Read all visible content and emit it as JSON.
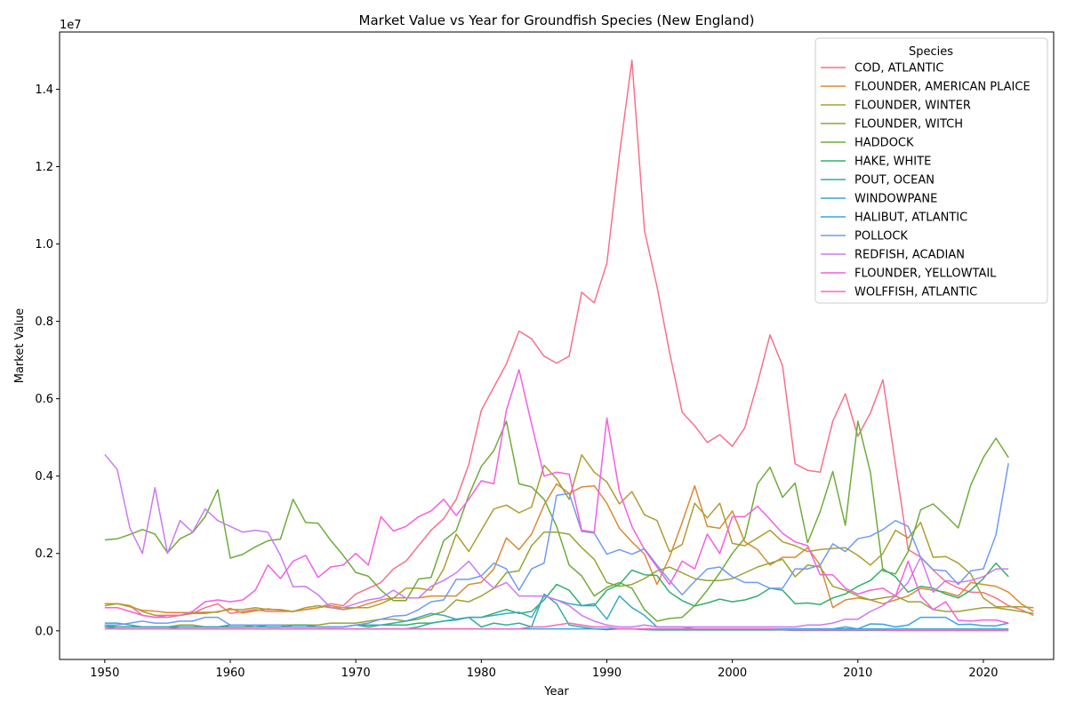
{
  "chart_data": {
    "type": "line",
    "title": "Market Value vs Year for Groundfish Species (New England)",
    "xlabel": "Year",
    "ylabel": "Market Value",
    "offset_text": "1e7",
    "xlim": [
      1946.4,
      2025.6
    ],
    "ylim": [
      -740000,
      15480000
    ],
    "xticks": [
      1950,
      1960,
      1970,
      1980,
      1990,
      2000,
      2010,
      2020
    ],
    "xtick_labels": [
      "1950",
      "1960",
      "1970",
      "1980",
      "1990",
      "2000",
      "2010",
      "2020"
    ],
    "yticks": [
      0,
      2000000,
      4000000,
      6000000,
      8000000,
      10000000,
      12000000,
      14000000
    ],
    "ytick_labels": [
      "0.0",
      "0.2",
      "0.4",
      "0.6",
      "0.8",
      "1.0",
      "1.2",
      "1.4"
    ],
    "grid": false,
    "legend": {
      "title": "Species",
      "placement": "top-right"
    },
    "x_start": 1950,
    "series": [
      {
        "name": "COD, ATLANTIC",
        "color": "#f77189",
        "values": [
          700000,
          700000,
          650000,
          400000,
          350000,
          350000,
          400000,
          450000,
          600000,
          700000,
          450000,
          500000,
          550000,
          500000,
          500000,
          500000,
          550000,
          600000,
          700000,
          650000,
          950000,
          1100000,
          1250000,
          1600000,
          1800000,
          2200000,
          2600000,
          2900000,
          3400000,
          4300000,
          5700000,
          6300000,
          6900000,
          7750000,
          7550000,
          7100000,
          6920000,
          7100000,
          8750000,
          8480000,
          9500000,
          12300000,
          14750000,
          10350000,
          8900000,
          7200000,
          5650000,
          5300000,
          4870000,
          5070000,
          4770000,
          5250000,
          6400000,
          7650000,
          6850000,
          4320000,
          4150000,
          4100000,
          5420000,
          6130000,
          5030000,
          5630000,
          6490000,
          4300000,
          2100000,
          1910000,
          1570000,
          1270000,
          1110000,
          1000000,
          990000,
          850000,
          650000,
          550000,
          400000
        ]
      },
      {
        "name": "FLOUNDER, AMERICAN PLAICE",
        "color": "#dc8932",
        "values": [
          700000,
          700000,
          620000,
          530000,
          510000,
          470000,
          470000,
          470000,
          480000,
          480000,
          580000,
          460000,
          520000,
          570000,
          530000,
          500000,
          550000,
          600000,
          650000,
          600000,
          600000,
          700000,
          800000,
          850000,
          850000,
          850000,
          900000,
          900000,
          900000,
          1200000,
          1250000,
          1600000,
          2400000,
          2100000,
          2500000,
          3250000,
          3800000,
          3550000,
          3720000,
          3750000,
          3300000,
          2650000,
          2300000,
          1980000,
          1200000,
          1900000,
          2800000,
          3750000,
          2700000,
          2650000,
          3100000,
          2300000,
          2100000,
          1700000,
          1900000,
          1900000,
          2150000,
          1700000,
          600000,
          800000,
          850000,
          800000,
          700000,
          800000,
          900000,
          1100000,
          1050000,
          1000000,
          900000,
          1250000,
          1200000,
          1150000,
          1000000,
          700000,
          500000
        ]
      },
      {
        "name": "FLOUNDER, WINTER",
        "color": "#ae9d31",
        "values": [
          650000,
          700000,
          650000,
          500000,
          400000,
          400000,
          400000,
          450000,
          450000,
          500000,
          550000,
          550000,
          600000,
          550000,
          550000,
          500000,
          600000,
          650000,
          600000,
          550000,
          600000,
          600000,
          700000,
          850000,
          1100000,
          1100000,
          1050000,
          1600000,
          2500000,
          2050000,
          2600000,
          3150000,
          3250000,
          3050000,
          3200000,
          4280000,
          3930000,
          3400000,
          4550000,
          4100000,
          3850000,
          3280000,
          3600000,
          3000000,
          2850000,
          2050000,
          2230000,
          3300000,
          2920000,
          3300000,
          2260000,
          2200000,
          2400000,
          2600000,
          2300000,
          2200000,
          2050000,
          2100000,
          2130000,
          2150000,
          1950000,
          1700000,
          2000000,
          2600000,
          2400000,
          2800000,
          1900000,
          1920000,
          1750000,
          1470000,
          850000,
          620000,
          620000,
          620000,
          600000
        ]
      },
      {
        "name": "FLOUNDER, WITCH",
        "color": "#97a431",
        "values": [
          100000,
          100000,
          100000,
          100000,
          100000,
          100000,
          150000,
          150000,
          100000,
          100000,
          100000,
          100000,
          150000,
          150000,
          150000,
          150000,
          150000,
          150000,
          200000,
          200000,
          200000,
          250000,
          300000,
          300000,
          250000,
          300000,
          400000,
          500000,
          800000,
          750000,
          900000,
          1100000,
          1500000,
          1550000,
          2200000,
          2550000,
          2550000,
          2500000,
          2150000,
          1850000,
          1250000,
          1150000,
          1200000,
          1350000,
          1550000,
          1650000,
          1500000,
          1350000,
          1300000,
          1300000,
          1350000,
          1500000,
          1650000,
          1750000,
          1850000,
          1400000,
          1700000,
          1650000,
          1150000,
          1050000,
          900000,
          800000,
          850000,
          900000,
          750000,
          750000,
          550000,
          500000,
          500000,
          550000,
          600000,
          600000,
          550000,
          500000,
          450000
        ]
      },
      {
        "name": "HADDOCK",
        "color": "#6eac3a",
        "values": [
          2350000,
          2380000,
          2490000,
          2620000,
          2500000,
          2020000,
          2380000,
          2540000,
          2950000,
          3650000,
          1880000,
          1980000,
          2170000,
          2330000,
          2370000,
          3400000,
          2800000,
          2780000,
          2340000,
          1950000,
          1510000,
          1410000,
          1050000,
          780000,
          780000,
          1340000,
          1380000,
          2330000,
          2590000,
          3500000,
          4250000,
          4660000,
          5420000,
          3800000,
          3720000,
          3400000,
          2700000,
          1700000,
          1420000,
          900000,
          1120000,
          1250000,
          1100000,
          550000,
          250000,
          320000,
          350000,
          650000,
          1050000,
          1500000,
          2000000,
          2400000,
          3800000,
          4230000,
          3450000,
          3820000,
          2280000,
          3080000,
          4120000,
          2730000,
          5420000,
          4100000,
          1550000,
          1470000,
          2050000,
          3130000,
          3280000,
          2980000,
          2660000,
          3770000,
          4480000,
          4980000,
          4480000
        ]
      },
      {
        "name": "HAKE, WHITE",
        "color": "#33b06d",
        "values": [
          100000,
          100000,
          100000,
          100000,
          100000,
          100000,
          100000,
          100000,
          100000,
          100000,
          150000,
          150000,
          150000,
          100000,
          100000,
          150000,
          150000,
          100000,
          100000,
          100000,
          150000,
          100000,
          150000,
          150000,
          150000,
          200000,
          200000,
          250000,
          300000,
          350000,
          350000,
          450000,
          550000,
          450000,
          500000,
          800000,
          1200000,
          1050000,
          650000,
          650000,
          1050000,
          1200000,
          1570000,
          1450000,
          1430000,
          1000000,
          780000,
          640000,
          720000,
          820000,
          750000,
          800000,
          900000,
          1100000,
          1050000,
          700000,
          720000,
          680000,
          850000,
          950000,
          1150000,
          1300000,
          1600000,
          1400000,
          1000000,
          1150000,
          1100000,
          950000,
          850000,
          1050000,
          1350000,
          1750000,
          1400000
        ]
      },
      {
        "name": "POUT, OCEAN",
        "color": "#35aca4",
        "values": [
          150000,
          100000,
          100000,
          100000,
          100000,
          100000,
          50000,
          50000,
          50000,
          50000,
          50000,
          50000,
          50000,
          50000,
          50000,
          50000,
          50000,
          50000,
          50000,
          50000,
          50000,
          50000,
          50000,
          50000,
          50000,
          100000,
          200000,
          250000,
          280000,
          350000,
          100000,
          200000,
          150000,
          200000,
          100000,
          950000,
          700000,
          150000,
          100000,
          50000,
          30000,
          50000,
          50000,
          30000,
          20000,
          20000,
          20000,
          20000,
          20000,
          20000,
          20000,
          20000,
          20000,
          20000,
          20000,
          10000,
          10000,
          10000,
          10000,
          10000,
          10000,
          10000,
          10000,
          10000,
          10000,
          10000,
          10000,
          10000,
          10000,
          10000,
          10000,
          10000,
          10000
        ]
      },
      {
        "name": "WINDOWPANE",
        "color": "#38a9c5",
        "values": [
          200000,
          200000,
          150000,
          100000,
          100000,
          100000,
          100000,
          100000,
          100000,
          100000,
          100000,
          100000,
          100000,
          100000,
          100000,
          100000,
          100000,
          100000,
          100000,
          100000,
          150000,
          150000,
          150000,
          200000,
          250000,
          350000,
          450000,
          400000,
          300000,
          350000,
          350000,
          400000,
          450000,
          480000,
          350000,
          900000,
          800000,
          700000,
          650000,
          700000,
          300000,
          900000,
          600000,
          400000,
          100000,
          100000,
          100000,
          50000,
          50000,
          50000,
          50000,
          50000,
          50000,
          50000,
          50000,
          50000,
          50000,
          50000,
          50000,
          50000,
          50000,
          50000,
          50000,
          50000,
          50000,
          50000,
          50000,
          50000,
          50000,
          50000,
          50000,
          50000,
          50000
        ]
      },
      {
        "name": "HALIBUT, ATLANTIC",
        "color": "#3ba3ec",
        "values": [
          100000,
          50000,
          50000,
          50000,
          50000,
          50000,
          50000,
          50000,
          50000,
          50000,
          50000,
          50000,
          50000,
          50000,
          50000,
          50000,
          50000,
          50000,
          50000,
          50000,
          50000,
          50000,
          50000,
          50000,
          50000,
          50000,
          50000,
          50000,
          50000,
          50000,
          50000,
          50000,
          50000,
          50000,
          50000,
          50000,
          50000,
          50000,
          50000,
          50000,
          50000,
          50000,
          50000,
          50000,
          50000,
          50000,
          50000,
          50000,
          50000,
          50000,
          50000,
          50000,
          50000,
          50000,
          50000,
          50000,
          50000,
          50000,
          50000,
          100000,
          50000,
          180000,
          170000,
          100000,
          150000,
          350000,
          350000,
          350000,
          160000,
          170000,
          130000,
          130000,
          200000
        ]
      },
      {
        "name": "POLLOCK",
        "color": "#6e9bf4",
        "values": [
          150000,
          150000,
          200000,
          250000,
          200000,
          200000,
          250000,
          250000,
          350000,
          350000,
          150000,
          150000,
          150000,
          150000,
          150000,
          100000,
          100000,
          100000,
          100000,
          100000,
          150000,
          200000,
          300000,
          380000,
          400000,
          550000,
          750000,
          800000,
          1330000,
          1330000,
          1420000,
          1750000,
          1600000,
          1050000,
          1600000,
          1750000,
          3500000,
          3550000,
          2570000,
          2530000,
          1980000,
          2100000,
          1980000,
          2120000,
          1700000,
          1300000,
          930000,
          1280000,
          1600000,
          1650000,
          1400000,
          1250000,
          1250000,
          1100000,
          1100000,
          1600000,
          1600000,
          1700000,
          2250000,
          2050000,
          2380000,
          2450000,
          2620000,
          2850000,
          2700000,
          1900000,
          1580000,
          1550000,
          1200000,
          1550000,
          1600000,
          2480000,
          4330000
        ]
      },
      {
        "name": "REDFISH, ACADIAN",
        "color": "#cc7af4",
        "values": [
          4560000,
          4170000,
          2650000,
          2000000,
          3700000,
          2000000,
          2850000,
          2550000,
          3150000,
          2850000,
          2700000,
          2550000,
          2600000,
          2550000,
          1950000,
          1140000,
          1150000,
          930000,
          600000,
          600000,
          700000,
          800000,
          850000,
          1050000,
          850000,
          850000,
          1150000,
          1300000,
          1500000,
          1800000,
          1400000,
          1100000,
          1250000,
          900000,
          900000,
          900000,
          800000,
          650000,
          400000,
          250000,
          150000,
          100000,
          100000,
          150000,
          100000,
          100000,
          100000,
          100000,
          100000,
          100000,
          100000,
          100000,
          100000,
          100000,
          100000,
          100000,
          150000,
          150000,
          200000,
          300000,
          300000,
          500000,
          650000,
          900000,
          1250000,
          1900000,
          1000000,
          1300000,
          1250000,
          1300000,
          1400000,
          1600000,
          1600000
        ]
      },
      {
        "name": "FLOUNDER, YELLOWTAIL",
        "color": "#f45fe1",
        "values": [
          600000,
          600000,
          500000,
          400000,
          350000,
          400000,
          400000,
          500000,
          750000,
          800000,
          750000,
          800000,
          1050000,
          1700000,
          1350000,
          1800000,
          1950000,
          1380000,
          1650000,
          1700000,
          2000000,
          1700000,
          2950000,
          2580000,
          2700000,
          2950000,
          3100000,
          3400000,
          2980000,
          3400000,
          3880000,
          3800000,
          5700000,
          6750000,
          5350000,
          4000000,
          4100000,
          4050000,
          2600000,
          2550000,
          5500000,
          3600000,
          2700000,
          2100000,
          1650000,
          1200000,
          1800000,
          1600000,
          2500000,
          2000000,
          2950000,
          2950000,
          3220000,
          2880000,
          2520000,
          2300000,
          2200000,
          1450000,
          1450000,
          1100000,
          950000,
          1050000,
          1100000,
          900000,
          1800000,
          900000,
          550000,
          750000,
          270000,
          250000,
          280000,
          280000,
          200000
        ]
      },
      {
        "name": "WOLFFISH, ATLANTIC",
        "color": "#f668c2",
        "values": [
          50000,
          50000,
          50000,
          50000,
          50000,
          50000,
          50000,
          50000,
          50000,
          50000,
          50000,
          50000,
          50000,
          50000,
          50000,
          50000,
          50000,
          50000,
          50000,
          50000,
          50000,
          50000,
          50000,
          50000,
          50000,
          50000,
          50000,
          50000,
          50000,
          50000,
          50000,
          50000,
          50000,
          50000,
          100000,
          100000,
          150000,
          200000,
          150000,
          100000,
          100000,
          50000,
          50000,
          50000,
          50000,
          50000,
          50000,
          50000,
          50000,
          50000,
          50000,
          50000,
          50000,
          50000,
          30000,
          20000,
          20000,
          20000,
          20000,
          20000,
          20000,
          20000,
          20000,
          10000,
          10000,
          10000,
          10000,
          10000,
          10000,
          10000,
          10000,
          10000,
          10000
        ]
      }
    ]
  }
}
